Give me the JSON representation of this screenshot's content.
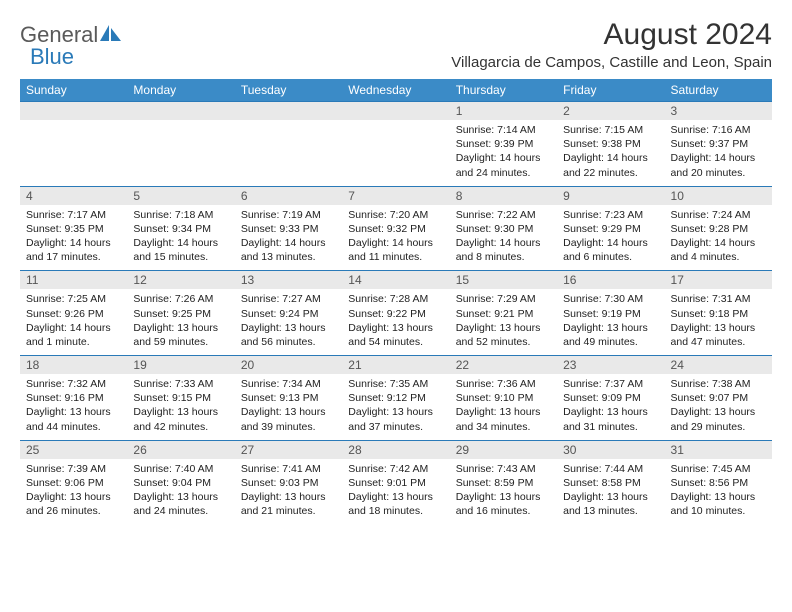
{
  "logo": {
    "t1": "General",
    "t2": "Blue"
  },
  "title": "August 2024",
  "location": "Villagarcia de Campos, Castille and Leon, Spain",
  "colors": {
    "header_bg": "#3b8bc7",
    "header_text": "#ffffff",
    "daynum_bg": "#e9e9e9",
    "daynum_border": "#2a7ab8",
    "logo_gray": "#5a5a5a",
    "logo_blue": "#2a7ab8"
  },
  "weekdays": [
    "Sunday",
    "Monday",
    "Tuesday",
    "Wednesday",
    "Thursday",
    "Friday",
    "Saturday"
  ],
  "weeks": [
    {
      "nums": [
        "",
        "",
        "",
        "",
        "1",
        "2",
        "3"
      ],
      "cells": [
        "",
        "",
        "",
        "",
        "Sunrise: 7:14 AM\nSunset: 9:39 PM\nDaylight: 14 hours and 24 minutes.",
        "Sunrise: 7:15 AM\nSunset: 9:38 PM\nDaylight: 14 hours and 22 minutes.",
        "Sunrise: 7:16 AM\nSunset: 9:37 PM\nDaylight: 14 hours and 20 minutes."
      ]
    },
    {
      "nums": [
        "4",
        "5",
        "6",
        "7",
        "8",
        "9",
        "10"
      ],
      "cells": [
        "Sunrise: 7:17 AM\nSunset: 9:35 PM\nDaylight: 14 hours and 17 minutes.",
        "Sunrise: 7:18 AM\nSunset: 9:34 PM\nDaylight: 14 hours and 15 minutes.",
        "Sunrise: 7:19 AM\nSunset: 9:33 PM\nDaylight: 14 hours and 13 minutes.",
        "Sunrise: 7:20 AM\nSunset: 9:32 PM\nDaylight: 14 hours and 11 minutes.",
        "Sunrise: 7:22 AM\nSunset: 9:30 PM\nDaylight: 14 hours and 8 minutes.",
        "Sunrise: 7:23 AM\nSunset: 9:29 PM\nDaylight: 14 hours and 6 minutes.",
        "Sunrise: 7:24 AM\nSunset: 9:28 PM\nDaylight: 14 hours and 4 minutes."
      ]
    },
    {
      "nums": [
        "11",
        "12",
        "13",
        "14",
        "15",
        "16",
        "17"
      ],
      "cells": [
        "Sunrise: 7:25 AM\nSunset: 9:26 PM\nDaylight: 14 hours and 1 minute.",
        "Sunrise: 7:26 AM\nSunset: 9:25 PM\nDaylight: 13 hours and 59 minutes.",
        "Sunrise: 7:27 AM\nSunset: 9:24 PM\nDaylight: 13 hours and 56 minutes.",
        "Sunrise: 7:28 AM\nSunset: 9:22 PM\nDaylight: 13 hours and 54 minutes.",
        "Sunrise: 7:29 AM\nSunset: 9:21 PM\nDaylight: 13 hours and 52 minutes.",
        "Sunrise: 7:30 AM\nSunset: 9:19 PM\nDaylight: 13 hours and 49 minutes.",
        "Sunrise: 7:31 AM\nSunset: 9:18 PM\nDaylight: 13 hours and 47 minutes."
      ]
    },
    {
      "nums": [
        "18",
        "19",
        "20",
        "21",
        "22",
        "23",
        "24"
      ],
      "cells": [
        "Sunrise: 7:32 AM\nSunset: 9:16 PM\nDaylight: 13 hours and 44 minutes.",
        "Sunrise: 7:33 AM\nSunset: 9:15 PM\nDaylight: 13 hours and 42 minutes.",
        "Sunrise: 7:34 AM\nSunset: 9:13 PM\nDaylight: 13 hours and 39 minutes.",
        "Sunrise: 7:35 AM\nSunset: 9:12 PM\nDaylight: 13 hours and 37 minutes.",
        "Sunrise: 7:36 AM\nSunset: 9:10 PM\nDaylight: 13 hours and 34 minutes.",
        "Sunrise: 7:37 AM\nSunset: 9:09 PM\nDaylight: 13 hours and 31 minutes.",
        "Sunrise: 7:38 AM\nSunset: 9:07 PM\nDaylight: 13 hours and 29 minutes."
      ]
    },
    {
      "nums": [
        "25",
        "26",
        "27",
        "28",
        "29",
        "30",
        "31"
      ],
      "cells": [
        "Sunrise: 7:39 AM\nSunset: 9:06 PM\nDaylight: 13 hours and 26 minutes.",
        "Sunrise: 7:40 AM\nSunset: 9:04 PM\nDaylight: 13 hours and 24 minutes.",
        "Sunrise: 7:41 AM\nSunset: 9:03 PM\nDaylight: 13 hours and 21 minutes.",
        "Sunrise: 7:42 AM\nSunset: 9:01 PM\nDaylight: 13 hours and 18 minutes.",
        "Sunrise: 7:43 AM\nSunset: 8:59 PM\nDaylight: 13 hours and 16 minutes.",
        "Sunrise: 7:44 AM\nSunset: 8:58 PM\nDaylight: 13 hours and 13 minutes.",
        "Sunrise: 7:45 AM\nSunset: 8:56 PM\nDaylight: 13 hours and 10 minutes."
      ]
    }
  ]
}
